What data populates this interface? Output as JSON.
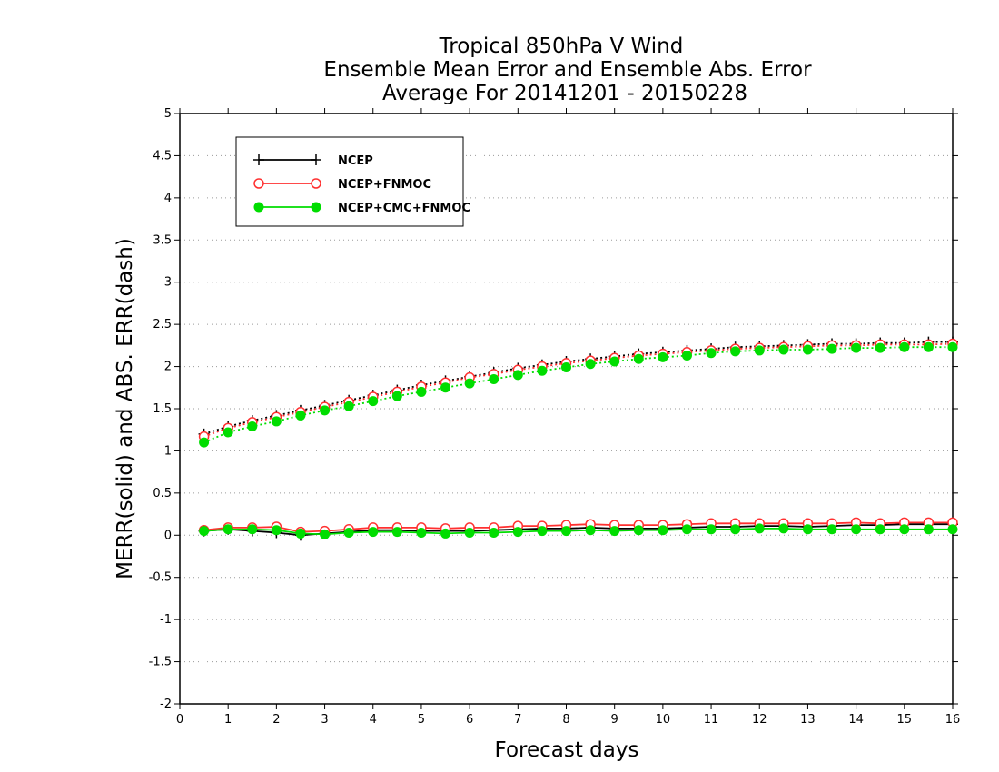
{
  "chart_data": {
    "type": "line",
    "title_lines": [
      "Tropical 850hPa V Wind",
      "Ensemble Mean Error and Ensemble Abs. Error",
      "Average For 20141201 - 20150228"
    ],
    "xlabel": "Forecast days",
    "ylabel": "MERR(solid) and ABS. ERR(dash)",
    "xlim": [
      0,
      16
    ],
    "ylim": [
      -2,
      5
    ],
    "x_ticks": [
      "0",
      "1",
      "2",
      "3",
      "4",
      "5",
      "6",
      "7",
      "8",
      "9",
      "10",
      "11",
      "12",
      "13",
      "14",
      "15",
      "16"
    ],
    "y_ticks": [
      "-2",
      "-1.5",
      "-1",
      "-0.5",
      "0",
      "0.5",
      "1",
      "1.5",
      "2",
      "2.5",
      "3",
      "3.5",
      "4",
      "4.5",
      "5"
    ],
    "grid": "horizontal dotted",
    "legend_position": "top-left",
    "x": [
      0.5,
      1,
      1.5,
      2,
      2.5,
      3,
      3.5,
      4,
      4.5,
      5,
      5.5,
      6,
      6.5,
      7,
      7.5,
      8,
      8.5,
      9,
      9.5,
      10,
      10.5,
      11,
      11.5,
      12,
      12.5,
      13,
      13.5,
      14,
      14.5,
      15,
      15.5,
      16
    ],
    "series": [
      {
        "name": "NCEP",
        "color": "#000000",
        "marker": "plus",
        "merr": [
          0.05,
          0.07,
          0.05,
          0.03,
          0.0,
          0.02,
          0.04,
          0.06,
          0.06,
          0.05,
          0.05,
          0.05,
          0.06,
          0.07,
          0.08,
          0.08,
          0.09,
          0.08,
          0.08,
          0.08,
          0.09,
          0.1,
          0.1,
          0.11,
          0.11,
          0.1,
          0.11,
          0.12,
          0.12,
          0.13,
          0.13,
          0.13
        ],
        "abs_err": [
          1.2,
          1.29,
          1.36,
          1.42,
          1.48,
          1.54,
          1.6,
          1.66,
          1.72,
          1.78,
          1.83,
          1.88,
          1.93,
          1.98,
          2.02,
          2.06,
          2.09,
          2.12,
          2.15,
          2.17,
          2.19,
          2.21,
          2.23,
          2.24,
          2.25,
          2.26,
          2.27,
          2.27,
          2.28,
          2.28,
          2.29,
          2.29
        ]
      },
      {
        "name": "NCEP+FNMOC",
        "color": "#ff3030",
        "marker": "open-circle",
        "merr": [
          0.06,
          0.09,
          0.09,
          0.1,
          0.04,
          0.05,
          0.07,
          0.09,
          0.09,
          0.09,
          0.08,
          0.09,
          0.09,
          0.11,
          0.11,
          0.12,
          0.13,
          0.12,
          0.12,
          0.12,
          0.13,
          0.14,
          0.14,
          0.14,
          0.14,
          0.14,
          0.14,
          0.15,
          0.14,
          0.15,
          0.15,
          0.15
        ],
        "abs_err": [
          1.17,
          1.27,
          1.34,
          1.4,
          1.46,
          1.52,
          1.58,
          1.64,
          1.7,
          1.76,
          1.81,
          1.87,
          1.91,
          1.96,
          2.0,
          2.04,
          2.07,
          2.1,
          2.13,
          2.15,
          2.17,
          2.19,
          2.21,
          2.22,
          2.23,
          2.24,
          2.25,
          2.25,
          2.26,
          2.26,
          2.26,
          2.27
        ]
      },
      {
        "name": "NCEP+CMC+FNMOC",
        "color": "#00dd00",
        "marker": "filled-circle",
        "merr": [
          0.05,
          0.07,
          0.07,
          0.06,
          0.02,
          0.01,
          0.03,
          0.04,
          0.04,
          0.03,
          0.02,
          0.03,
          0.03,
          0.04,
          0.05,
          0.05,
          0.06,
          0.05,
          0.06,
          0.06,
          0.07,
          0.07,
          0.07,
          0.08,
          0.08,
          0.07,
          0.07,
          0.07,
          0.07,
          0.07,
          0.07,
          0.07
        ],
        "abs_err": [
          1.1,
          1.22,
          1.29,
          1.35,
          1.42,
          1.48,
          1.53,
          1.59,
          1.65,
          1.7,
          1.75,
          1.8,
          1.85,
          1.9,
          1.95,
          1.99,
          2.03,
          2.06,
          2.09,
          2.11,
          2.13,
          2.16,
          2.18,
          2.19,
          2.2,
          2.2,
          2.21,
          2.22,
          2.22,
          2.23,
          2.23,
          2.23
        ]
      }
    ]
  }
}
